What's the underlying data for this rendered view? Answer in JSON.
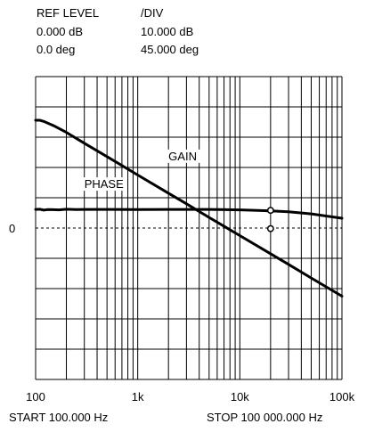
{
  "header": {
    "ref_level_label": "REF LEVEL",
    "div_label": "/DIV",
    "gain_ref": "0.000 dB",
    "gain_div": "10.000 dB",
    "phase_ref": "0.0 deg",
    "phase_div": "45.000 deg"
  },
  "footer": {
    "start": "START  100.000 Hz",
    "stop": "STOP  100 000.000 Hz"
  },
  "chart_data": {
    "type": "line",
    "x_scale": "log",
    "xlim": [
      100,
      100000
    ],
    "x_ticks": [
      {
        "value": 100,
        "label": "100"
      },
      {
        "value": 1000,
        "label": "1k"
      },
      {
        "value": 10000,
        "label": "10k"
      },
      {
        "value": 100000,
        "label": "100k"
      }
    ],
    "y_ref_label": "0",
    "y_divisions": 10,
    "y_ref_division": 5,
    "grid": true,
    "series": [
      {
        "name": "GAIN",
        "unit": "dB",
        "per_div": 10,
        "color": "#000000",
        "points": [
          [
            100,
            35.6
          ],
          [
            110,
            35.6
          ],
          [
            120,
            35.2
          ],
          [
            150,
            33.8
          ],
          [
            200,
            31.6
          ],
          [
            300,
            28.0
          ],
          [
            500,
            23.6
          ],
          [
            1000,
            17.5
          ],
          [
            2000,
            11.5
          ],
          [
            3000,
            8.0
          ],
          [
            5000,
            3.5
          ],
          [
            10000,
            -2.5
          ],
          [
            20000,
            -8.5
          ],
          [
            30000,
            -12.0
          ],
          [
            50000,
            -16.5
          ],
          [
            100000,
            -22.5
          ]
        ],
        "markers": [
          [
            20000,
            -0.2
          ]
        ]
      },
      {
        "name": "PHASE",
        "unit": "deg",
        "per_div": 45,
        "color": "#000000",
        "points": [
          [
            100,
            27.6
          ],
          [
            110,
            27.9
          ],
          [
            120,
            26.6
          ],
          [
            130,
            27.4
          ],
          [
            150,
            27.2
          ],
          [
            170,
            27.0
          ],
          [
            200,
            27.9
          ],
          [
            250,
            27.4
          ],
          [
            300,
            27.6
          ],
          [
            500,
            27.6
          ],
          [
            1000,
            27.4
          ],
          [
            2000,
            27.6
          ],
          [
            5000,
            27.6
          ],
          [
            10000,
            27.0
          ],
          [
            15000,
            26.2
          ],
          [
            20000,
            25.6
          ],
          [
            30000,
            24.2
          ],
          [
            50000,
            21.0
          ],
          [
            100000,
            14.5
          ]
        ],
        "markers": [
          [
            20000,
            26.2
          ]
        ]
      }
    ],
    "series_labels": [
      {
        "text": "GAIN",
        "x": 2000,
        "y": 22.4
      },
      {
        "text": "PHASE",
        "x": 300,
        "y": 13.2
      }
    ]
  }
}
